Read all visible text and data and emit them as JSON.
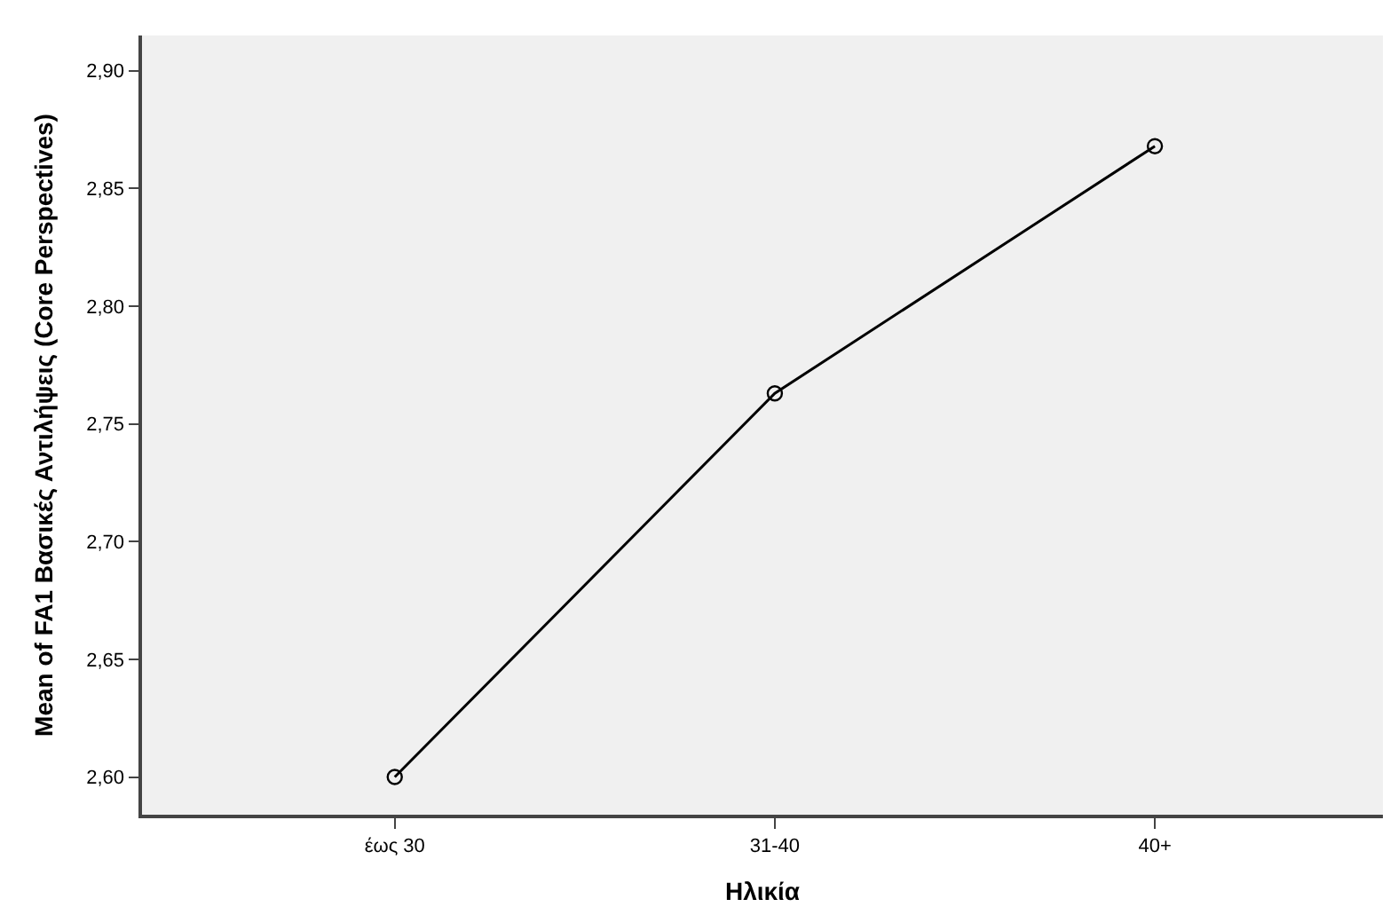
{
  "chart_data": {
    "type": "line",
    "xlabel": "Ηλικία",
    "ylabel": "Mean of FA1 Βασικές Αντιλήψεις (Core Perspectives)",
    "categories": [
      "έως 30",
      "31-40",
      "40+"
    ],
    "series": [
      {
        "color": "#000000",
        "values": [
          2.6,
          2.763,
          2.868
        ]
      }
    ],
    "ylim": [
      2.584,
      2.915
    ],
    "yticks": [
      {
        "value": 2.6,
        "label": "2,60"
      },
      {
        "value": 2.65,
        "label": "2,65"
      },
      {
        "value": 2.7,
        "label": "2,70"
      },
      {
        "value": 2.75,
        "label": "2,75"
      },
      {
        "value": 2.8,
        "label": "2,80"
      },
      {
        "value": 2.85,
        "label": "2,85"
      },
      {
        "value": 2.9,
        "label": "2,90"
      }
    ],
    "marker": "circle",
    "line_style": "solid",
    "grid": false
  }
}
